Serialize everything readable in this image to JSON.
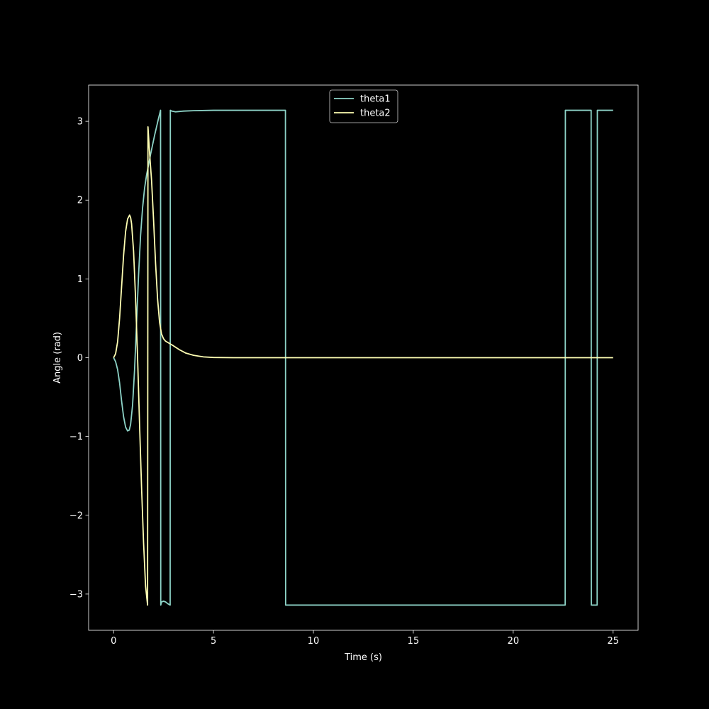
{
  "chart_data": {
    "type": "line",
    "title": "",
    "xlabel": "Time (s)",
    "ylabel": "Angle (rad)",
    "xlim": [
      -1.25,
      26.25
    ],
    "ylim": [
      -3.46,
      3.46
    ],
    "xticks": [
      0,
      5,
      10,
      15,
      20,
      25
    ],
    "xtick_labels": [
      "0",
      "5",
      "10",
      "15",
      "20",
      "25"
    ],
    "yticks": [
      -3,
      -2,
      -1,
      0,
      1,
      2,
      3
    ],
    "ytick_labels": [
      "−3",
      "−2",
      "−1",
      "0",
      "1",
      "2",
      "3"
    ],
    "grid": false,
    "legend_position": "top-center",
    "background": "#000000",
    "foreground": "#ffffff",
    "series": [
      {
        "name": "theta1",
        "color": "#8dd3c7",
        "x": [
          0,
          0.1,
          0.2,
          0.3,
          0.4,
          0.5,
          0.6,
          0.7,
          0.78,
          0.85,
          0.95,
          1.05,
          1.15,
          1.25,
          1.35,
          1.45,
          1.55,
          1.65,
          1.75,
          1.85,
          1.95,
          2.05,
          2.15,
          2.25,
          2.35,
          2.36,
          2.4,
          2.5,
          2.6,
          2.7,
          2.83,
          2.84,
          2.9,
          3.1,
          3.5,
          4.0,
          5.0,
          6.0,
          7.0,
          8.0,
          8.6,
          8.61,
          15,
          22.6,
          22.61,
          23.9,
          23.91,
          24.2,
          24.21,
          25.0
        ],
        "y": [
          0,
          -0.05,
          -0.15,
          -0.32,
          -0.55,
          -0.75,
          -0.88,
          -0.93,
          -0.92,
          -0.85,
          -0.6,
          -0.15,
          0.45,
          1.05,
          1.55,
          1.9,
          2.15,
          2.32,
          2.45,
          2.58,
          2.7,
          2.82,
          2.93,
          3.04,
          3.14,
          -3.14,
          -3.1,
          -3.09,
          -3.1,
          -3.12,
          -3.14,
          3.14,
          3.13,
          3.12,
          3.13,
          3.135,
          3.14,
          3.14,
          3.14,
          3.14,
          3.14,
          -3.14,
          -3.14,
          -3.14,
          3.14,
          3.14,
          -3.14,
          -3.14,
          3.14,
          3.14
        ]
      },
      {
        "name": "theta2",
        "color": "#ffffb3",
        "x": [
          0,
          0.1,
          0.2,
          0.3,
          0.4,
          0.5,
          0.6,
          0.7,
          0.8,
          0.85,
          0.9,
          1.0,
          1.1,
          1.2,
          1.3,
          1.4,
          1.5,
          1.6,
          1.7,
          1.72,
          1.74,
          1.8,
          1.9,
          2.0,
          2.1,
          2.2,
          2.3,
          2.4,
          2.5,
          2.6,
          2.8,
          3.0,
          3.3,
          3.6,
          4.0,
          4.5,
          5.0,
          6.0,
          8.0,
          10,
          15,
          20,
          25
        ],
        "y": [
          0,
          0.05,
          0.2,
          0.5,
          0.9,
          1.3,
          1.6,
          1.76,
          1.81,
          1.78,
          1.7,
          1.35,
          0.75,
          0.0,
          -0.85,
          -1.65,
          -2.35,
          -2.9,
          -3.14,
          2.93,
          2.85,
          2.6,
          2.25,
          1.75,
          1.2,
          0.75,
          0.45,
          0.3,
          0.24,
          0.21,
          0.18,
          0.15,
          0.1,
          0.06,
          0.03,
          0.01,
          0.003,
          0,
          0,
          0,
          0,
          0,
          0
        ]
      }
    ]
  }
}
